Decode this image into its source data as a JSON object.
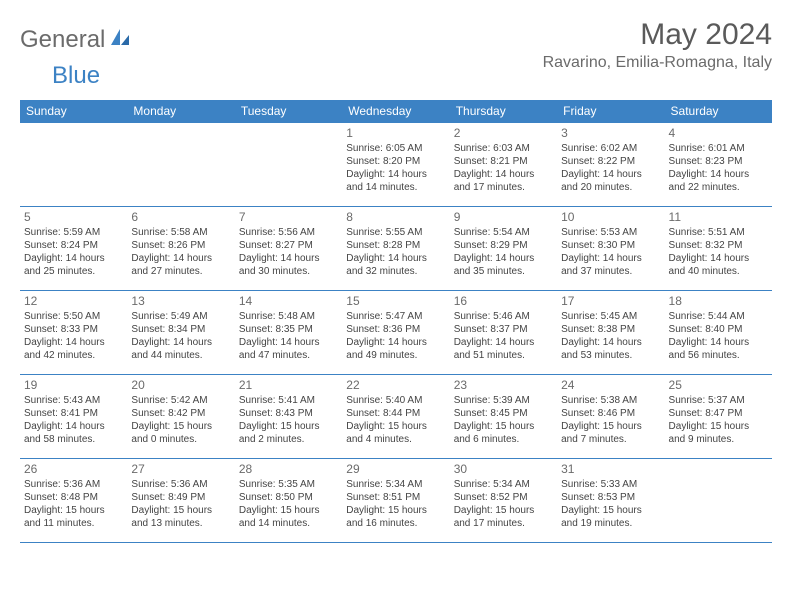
{
  "logo": {
    "part1": "General",
    "part2": "Blue"
  },
  "title": "May 2024",
  "location": "Ravarino, Emilia-Romagna, Italy",
  "weekdays": [
    "Sunday",
    "Monday",
    "Tuesday",
    "Wednesday",
    "Thursday",
    "Friday",
    "Saturday"
  ],
  "colors": {
    "accent": "#3c82c4",
    "header_bg": "#3c82c4",
    "header_text": "#ffffff",
    "text": "#444444",
    "muted": "#6b6b6b",
    "background": "#ffffff"
  },
  "typography": {
    "month_title_fontsize": 30,
    "location_fontsize": 16,
    "weekday_fontsize": 12,
    "daynum_fontsize": 12,
    "cell_fontsize": 10
  },
  "weeks": [
    [
      {
        "day": "",
        "sunrise": "",
        "sunset": "",
        "daylight_l1": "",
        "daylight_l2": ""
      },
      {
        "day": "",
        "sunrise": "",
        "sunset": "",
        "daylight_l1": "",
        "daylight_l2": ""
      },
      {
        "day": "",
        "sunrise": "",
        "sunset": "",
        "daylight_l1": "",
        "daylight_l2": ""
      },
      {
        "day": "1",
        "sunrise": "Sunrise: 6:05 AM",
        "sunset": "Sunset: 8:20 PM",
        "daylight_l1": "Daylight: 14 hours",
        "daylight_l2": "and 14 minutes."
      },
      {
        "day": "2",
        "sunrise": "Sunrise: 6:03 AM",
        "sunset": "Sunset: 8:21 PM",
        "daylight_l1": "Daylight: 14 hours",
        "daylight_l2": "and 17 minutes."
      },
      {
        "day": "3",
        "sunrise": "Sunrise: 6:02 AM",
        "sunset": "Sunset: 8:22 PM",
        "daylight_l1": "Daylight: 14 hours",
        "daylight_l2": "and 20 minutes."
      },
      {
        "day": "4",
        "sunrise": "Sunrise: 6:01 AM",
        "sunset": "Sunset: 8:23 PM",
        "daylight_l1": "Daylight: 14 hours",
        "daylight_l2": "and 22 minutes."
      }
    ],
    [
      {
        "day": "5",
        "sunrise": "Sunrise: 5:59 AM",
        "sunset": "Sunset: 8:24 PM",
        "daylight_l1": "Daylight: 14 hours",
        "daylight_l2": "and 25 minutes."
      },
      {
        "day": "6",
        "sunrise": "Sunrise: 5:58 AM",
        "sunset": "Sunset: 8:26 PM",
        "daylight_l1": "Daylight: 14 hours",
        "daylight_l2": "and 27 minutes."
      },
      {
        "day": "7",
        "sunrise": "Sunrise: 5:56 AM",
        "sunset": "Sunset: 8:27 PM",
        "daylight_l1": "Daylight: 14 hours",
        "daylight_l2": "and 30 minutes."
      },
      {
        "day": "8",
        "sunrise": "Sunrise: 5:55 AM",
        "sunset": "Sunset: 8:28 PM",
        "daylight_l1": "Daylight: 14 hours",
        "daylight_l2": "and 32 minutes."
      },
      {
        "day": "9",
        "sunrise": "Sunrise: 5:54 AM",
        "sunset": "Sunset: 8:29 PM",
        "daylight_l1": "Daylight: 14 hours",
        "daylight_l2": "and 35 minutes."
      },
      {
        "day": "10",
        "sunrise": "Sunrise: 5:53 AM",
        "sunset": "Sunset: 8:30 PM",
        "daylight_l1": "Daylight: 14 hours",
        "daylight_l2": "and 37 minutes."
      },
      {
        "day": "11",
        "sunrise": "Sunrise: 5:51 AM",
        "sunset": "Sunset: 8:32 PM",
        "daylight_l1": "Daylight: 14 hours",
        "daylight_l2": "and 40 minutes."
      }
    ],
    [
      {
        "day": "12",
        "sunrise": "Sunrise: 5:50 AM",
        "sunset": "Sunset: 8:33 PM",
        "daylight_l1": "Daylight: 14 hours",
        "daylight_l2": "and 42 minutes."
      },
      {
        "day": "13",
        "sunrise": "Sunrise: 5:49 AM",
        "sunset": "Sunset: 8:34 PM",
        "daylight_l1": "Daylight: 14 hours",
        "daylight_l2": "and 44 minutes."
      },
      {
        "day": "14",
        "sunrise": "Sunrise: 5:48 AM",
        "sunset": "Sunset: 8:35 PM",
        "daylight_l1": "Daylight: 14 hours",
        "daylight_l2": "and 47 minutes."
      },
      {
        "day": "15",
        "sunrise": "Sunrise: 5:47 AM",
        "sunset": "Sunset: 8:36 PM",
        "daylight_l1": "Daylight: 14 hours",
        "daylight_l2": "and 49 minutes."
      },
      {
        "day": "16",
        "sunrise": "Sunrise: 5:46 AM",
        "sunset": "Sunset: 8:37 PM",
        "daylight_l1": "Daylight: 14 hours",
        "daylight_l2": "and 51 minutes."
      },
      {
        "day": "17",
        "sunrise": "Sunrise: 5:45 AM",
        "sunset": "Sunset: 8:38 PM",
        "daylight_l1": "Daylight: 14 hours",
        "daylight_l2": "and 53 minutes."
      },
      {
        "day": "18",
        "sunrise": "Sunrise: 5:44 AM",
        "sunset": "Sunset: 8:40 PM",
        "daylight_l1": "Daylight: 14 hours",
        "daylight_l2": "and 56 minutes."
      }
    ],
    [
      {
        "day": "19",
        "sunrise": "Sunrise: 5:43 AM",
        "sunset": "Sunset: 8:41 PM",
        "daylight_l1": "Daylight: 14 hours",
        "daylight_l2": "and 58 minutes."
      },
      {
        "day": "20",
        "sunrise": "Sunrise: 5:42 AM",
        "sunset": "Sunset: 8:42 PM",
        "daylight_l1": "Daylight: 15 hours",
        "daylight_l2": "and 0 minutes."
      },
      {
        "day": "21",
        "sunrise": "Sunrise: 5:41 AM",
        "sunset": "Sunset: 8:43 PM",
        "daylight_l1": "Daylight: 15 hours",
        "daylight_l2": "and 2 minutes."
      },
      {
        "day": "22",
        "sunrise": "Sunrise: 5:40 AM",
        "sunset": "Sunset: 8:44 PM",
        "daylight_l1": "Daylight: 15 hours",
        "daylight_l2": "and 4 minutes."
      },
      {
        "day": "23",
        "sunrise": "Sunrise: 5:39 AM",
        "sunset": "Sunset: 8:45 PM",
        "daylight_l1": "Daylight: 15 hours",
        "daylight_l2": "and 6 minutes."
      },
      {
        "day": "24",
        "sunrise": "Sunrise: 5:38 AM",
        "sunset": "Sunset: 8:46 PM",
        "daylight_l1": "Daylight: 15 hours",
        "daylight_l2": "and 7 minutes."
      },
      {
        "day": "25",
        "sunrise": "Sunrise: 5:37 AM",
        "sunset": "Sunset: 8:47 PM",
        "daylight_l1": "Daylight: 15 hours",
        "daylight_l2": "and 9 minutes."
      }
    ],
    [
      {
        "day": "26",
        "sunrise": "Sunrise: 5:36 AM",
        "sunset": "Sunset: 8:48 PM",
        "daylight_l1": "Daylight: 15 hours",
        "daylight_l2": "and 11 minutes."
      },
      {
        "day": "27",
        "sunrise": "Sunrise: 5:36 AM",
        "sunset": "Sunset: 8:49 PM",
        "daylight_l1": "Daylight: 15 hours",
        "daylight_l2": "and 13 minutes."
      },
      {
        "day": "28",
        "sunrise": "Sunrise: 5:35 AM",
        "sunset": "Sunset: 8:50 PM",
        "daylight_l1": "Daylight: 15 hours",
        "daylight_l2": "and 14 minutes."
      },
      {
        "day": "29",
        "sunrise": "Sunrise: 5:34 AM",
        "sunset": "Sunset: 8:51 PM",
        "daylight_l1": "Daylight: 15 hours",
        "daylight_l2": "and 16 minutes."
      },
      {
        "day": "30",
        "sunrise": "Sunrise: 5:34 AM",
        "sunset": "Sunset: 8:52 PM",
        "daylight_l1": "Daylight: 15 hours",
        "daylight_l2": "and 17 minutes."
      },
      {
        "day": "31",
        "sunrise": "Sunrise: 5:33 AM",
        "sunset": "Sunset: 8:53 PM",
        "daylight_l1": "Daylight: 15 hours",
        "daylight_l2": "and 19 minutes."
      },
      {
        "day": "",
        "sunrise": "",
        "sunset": "",
        "daylight_l1": "",
        "daylight_l2": ""
      }
    ]
  ]
}
